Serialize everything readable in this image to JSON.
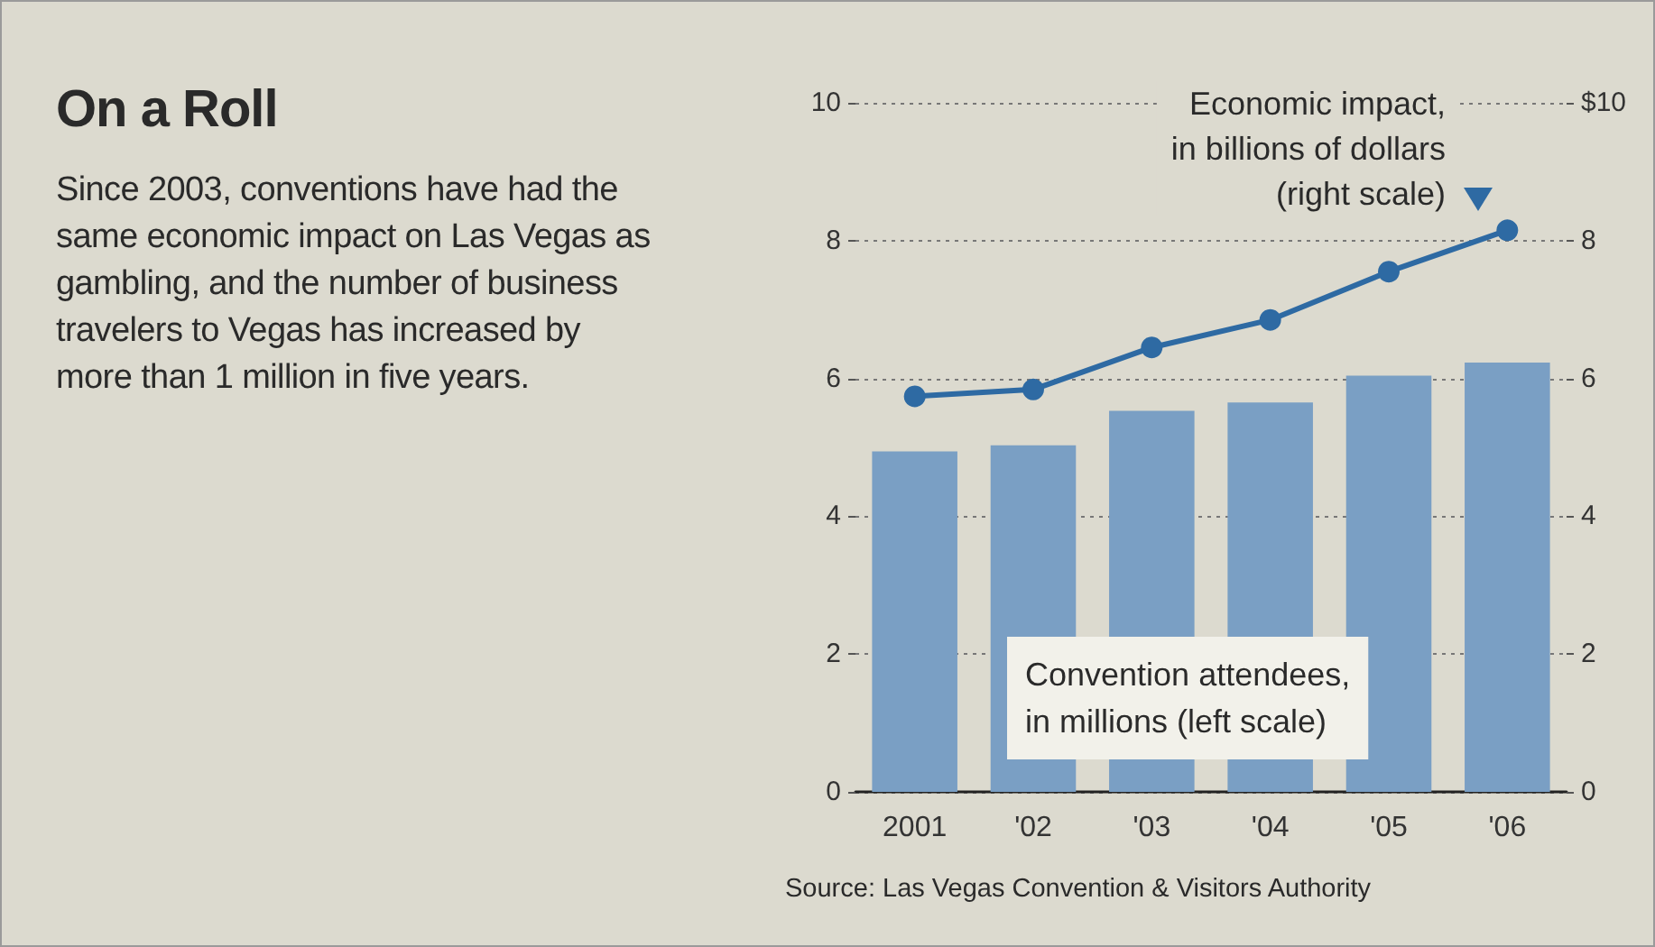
{
  "chart_data": {
    "type": "bar",
    "title": "On a Roll",
    "subtitle": "Since 2003, conventions have had the same economic impact on Las Vegas as gambling, and the number of business travelers to Vegas has increased by more than 1 million in five years.",
    "annotations": [
      "Source: Las Vegas Convention & Visitors Authority"
    ],
    "categories": [
      "2001",
      "'02",
      "'03",
      "'04",
      "'05",
      "'06"
    ],
    "series": [
      {
        "name": "Convention attendees, in millions (left scale)",
        "color": "#7a9fc4",
        "values": [
          4.94,
          5.03,
          5.53,
          5.65,
          6.04,
          6.23
        ]
      },
      {
        "name": "Economic impact, in billions of dollars (right scale)",
        "type": "line",
        "axis": "y2",
        "color": "#2e6aa3",
        "values": [
          5.74,
          5.84,
          6.45,
          6.85,
          7.55,
          8.15
        ]
      }
    ],
    "ylim": [
      0,
      10
    ],
    "yticks": [
      0,
      2,
      4,
      6,
      8,
      10
    ],
    "y2lim": [
      0,
      10
    ],
    "y2ticks": [
      0,
      2,
      4,
      6,
      8,
      {
        "value": 10,
        "label": "$10"
      }
    ],
    "grid": "y",
    "marker": "circle",
    "line_style": "solid"
  }
}
